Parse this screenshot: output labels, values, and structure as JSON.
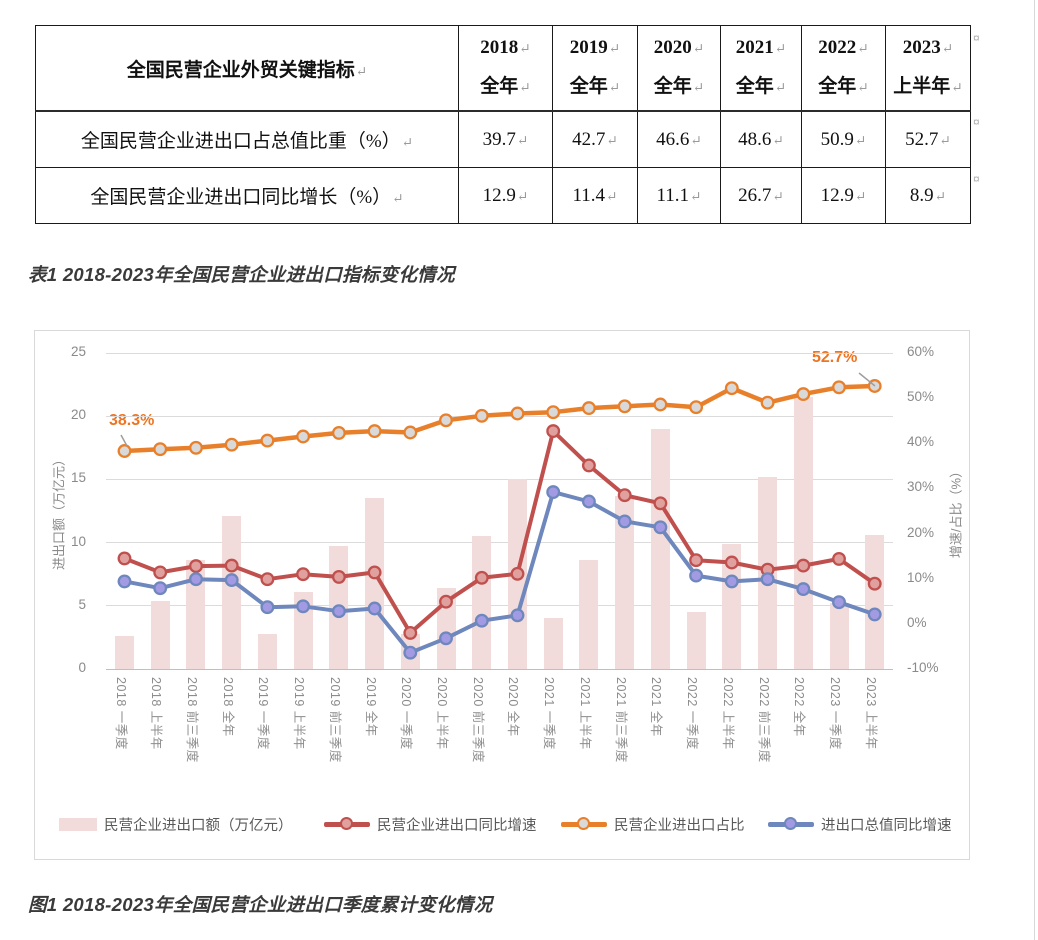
{
  "table": {
    "corner_header": "全国民营企业外贸关键指标",
    "year_headers": [
      {
        "line1": "2018",
        "line2": "全年"
      },
      {
        "line1": "2019",
        "line2": "全年"
      },
      {
        "line1": "2020",
        "line2": "全年"
      },
      {
        "line1": "2021",
        "line2": "全年"
      },
      {
        "line1": "2022",
        "line2": "全年"
      },
      {
        "line1": "2023",
        "line2": "上半年"
      }
    ],
    "rows": [
      {
        "label": "全国民营企业进出口占总值比重（%）",
        "values": [
          "39.7",
          "42.7",
          "46.6",
          "48.6",
          "50.9",
          "52.7"
        ]
      },
      {
        "label": "全国民营企业进出口同比增长（%）",
        "values": [
          "12.9",
          "11.4",
          "11.1",
          "26.7",
          "12.9",
          "8.9"
        ]
      }
    ],
    "return_mark": "↵",
    "row_end_mark": "¤"
  },
  "captions": {
    "table_caption": "表1 2018-2023年全国民营企业进出口指标变化情况",
    "figure_caption": "图1 2018-2023年全国民营企业进出口季度累计变化情况"
  },
  "chart_data": {
    "type": "bar+line combo, dual axis",
    "categories": [
      "2018 一季度",
      "2018 上半年",
      "2018 前三季度",
      "2018 全年",
      "2019 一季度",
      "2019 上半年",
      "2019 前三季度",
      "2019 全年",
      "2020 一季度",
      "2020 上半年",
      "2020 前三季度",
      "2020 全年",
      "2021 一季度",
      "2021 上半年",
      "2021 前三季度",
      "2021 全年",
      "2022 一季度",
      "2022 上半年",
      "2022 前三季度",
      "2022 全年",
      "2023 一季度",
      "2023 上半年"
    ],
    "series": [
      {
        "name": "民营企业进出口额（万亿元）",
        "type": "bar",
        "axis": "left",
        "color": "#f2dcdb",
        "values": [
          2.6,
          5.4,
          8.6,
          12.1,
          2.8,
          6.1,
          9.7,
          13.5,
          2.8,
          6.4,
          10.5,
          15.0,
          4.0,
          8.6,
          13.7,
          19.0,
          4.5,
          9.9,
          15.2,
          21.5,
          5.2,
          10.6
        ]
      },
      {
        "name": "民营企业进出口同比增速",
        "type": "line",
        "axis": "right",
        "color": "#c0504d",
        "marker_fill": "#e0a09e",
        "values": [
          14.5,
          11.4,
          12.8,
          12.9,
          9.9,
          11.0,
          10.4,
          11.4,
          -2.0,
          4.9,
          10.2,
          11.1,
          42.7,
          35.1,
          28.5,
          26.7,
          14.1,
          13.6,
          12.0,
          12.9,
          14.4,
          8.9
        ]
      },
      {
        "name": "民营企业进出口占比",
        "type": "line",
        "axis": "right",
        "color": "#e8802b",
        "marker_fill": "#d9d9d9",
        "values": [
          38.3,
          38.7,
          39.0,
          39.7,
          40.6,
          41.5,
          42.3,
          42.7,
          42.4,
          45.1,
          46.1,
          46.6,
          46.9,
          47.8,
          48.2,
          48.6,
          48.0,
          52.2,
          49.0,
          50.9,
          52.4,
          52.7
        ]
      },
      {
        "name": "进出口总值同比增速",
        "type": "line",
        "axis": "right",
        "color": "#6e87bd",
        "marker_fill": "#a39ae4",
        "values": [
          9.4,
          7.9,
          9.9,
          9.7,
          3.7,
          3.9,
          2.8,
          3.4,
          -6.4,
          -3.2,
          0.7,
          1.9,
          29.2,
          27.1,
          22.7,
          21.4,
          10.7,
          9.4,
          9.9,
          7.7,
          4.8,
          2.1
        ]
      }
    ],
    "left_axis": {
      "title": "进出口额（万亿元）",
      "min": 0,
      "max": 25,
      "step": 5,
      "ticks": [
        "25",
        "20",
        "15",
        "10",
        "5",
        "0"
      ]
    },
    "right_axis": {
      "title": "增速/占比（%）",
      "min": -10,
      "max": 60,
      "step": 10,
      "ticks": [
        "60%",
        "50%",
        "40%",
        "30%",
        "20%",
        "10%",
        "0%",
        "-10%"
      ]
    },
    "annotations": [
      {
        "text": "38.3%",
        "series": "民营企业进出口占比",
        "point_index": 0,
        "color": "#ed7420"
      },
      {
        "text": "52.7%",
        "series": "民营企业进出口占比",
        "point_index": 21,
        "color": "#ed7420"
      }
    ],
    "legend_position": "bottom",
    "grid": true,
    "gridline_color": "#dbdbdb"
  }
}
